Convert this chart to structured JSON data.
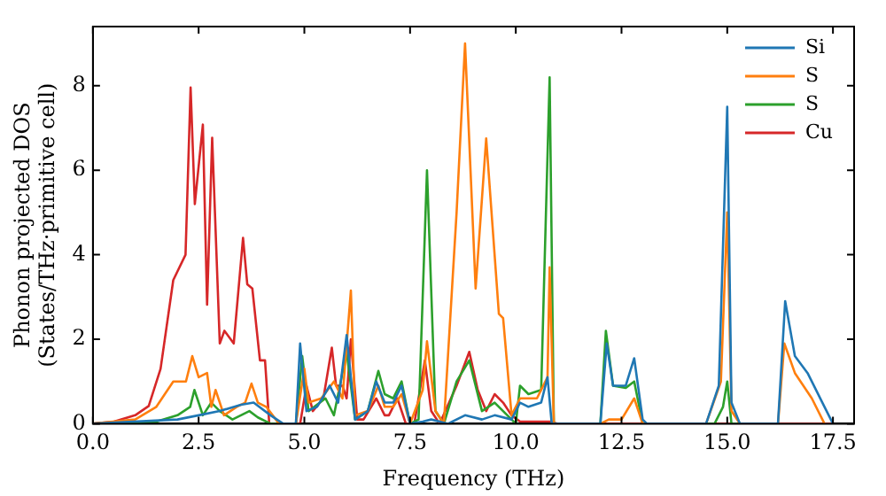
{
  "chart_data": {
    "type": "line",
    "xlabel": "Frequency (THz)",
    "ylabel": "Phonon projected DOS\n(States/THz·primitive cell)",
    "xlim": [
      0,
      18
    ],
    "ylim": [
      0,
      9.4
    ],
    "xticks": [
      {
        "value": 0,
        "label": "0.0"
      },
      2.5,
      {
        "value": 5,
        "label": "5.0"
      },
      7.5,
      {
        "value": 10,
        "label": "10.0"
      },
      12.5,
      {
        "value": 15,
        "label": "15.0"
      },
      17.5
    ],
    "yticks": [
      0,
      2,
      4,
      6,
      8
    ],
    "grid": false,
    "legend": "top right",
    "marker": "none",
    "line_style": "solid",
    "series": [
      {
        "name": "Si",
        "color": "#1f77b4",
        "x": [
          0,
          2,
          2.5,
          3,
          3.5,
          3.8,
          4.2,
          4.5,
          4.8,
          4.9,
          5.05,
          5.3,
          5.6,
          5.8,
          6.0,
          6.2,
          6.5,
          6.7,
          6.9,
          7.1,
          7.3,
          7.5,
          7.8,
          8.0,
          8.4,
          8.8,
          9.2,
          9.5,
          9.9,
          10.1,
          10.3,
          10.6,
          10.75,
          10.85,
          12.0,
          12.15,
          12.3,
          12.6,
          12.8,
          13.0,
          13.1,
          14.5,
          14.8,
          15.0,
          15.1,
          15.3,
          16.2,
          16.37,
          16.6,
          16.9,
          17.25,
          17.5
        ],
        "values": [
          0,
          0.1,
          0.2,
          0.3,
          0.45,
          0.5,
          0.2,
          0,
          0,
          1.9,
          0.3,
          0.4,
          0.9,
          0.5,
          2.1,
          0.1,
          0.3,
          1.0,
          0.5,
          0.5,
          0.9,
          0,
          0.05,
          0.1,
          0,
          0.2,
          0.1,
          0.2,
          0.1,
          0.5,
          0.4,
          0.5,
          1.1,
          0,
          0,
          1.9,
          0.9,
          0.9,
          1.55,
          0.1,
          0,
          0,
          0.9,
          7.5,
          0.5,
          0,
          0,
          2.9,
          1.6,
          1.2,
          0.5,
          0
        ]
      },
      {
        "name": "S",
        "color": "#ff7f0e",
        "x": [
          0,
          1,
          1.5,
          1.9,
          2.2,
          2.35,
          2.5,
          2.7,
          2.8,
          2.9,
          3.1,
          3.4,
          3.6,
          3.75,
          3.9,
          4.1,
          4.4,
          4.8,
          5.0,
          5.1,
          5.4,
          5.7,
          5.9,
          6.1,
          6.2,
          6.5,
          6.75,
          6.9,
          7.1,
          7.3,
          7.5,
          7.8,
          7.9,
          8.1,
          8.3,
          8.6,
          8.8,
          9.05,
          9.3,
          9.6,
          9.7,
          9.9,
          10.1,
          10.5,
          10.75,
          10.8,
          10.9,
          12.0,
          12.2,
          12.5,
          12.8,
          13.0,
          14.5,
          14.85,
          15.0,
          15.1,
          15.3,
          16.2,
          16.35,
          16.6,
          17.0,
          17.3
        ],
        "values": [
          0,
          0.1,
          0.4,
          1.0,
          1.0,
          1.6,
          1.1,
          1.2,
          0.4,
          0.8,
          0.2,
          0.4,
          0.5,
          0.95,
          0.5,
          0.4,
          0,
          0,
          1.3,
          0.5,
          0.6,
          1.0,
          0.6,
          3.15,
          0.2,
          0.3,
          0.9,
          0.4,
          0.4,
          0.7,
          0,
          0.8,
          1.95,
          0.3,
          0,
          5.0,
          9.0,
          3.2,
          6.75,
          2.6,
          2.5,
          0.2,
          0.6,
          0.6,
          1.1,
          3.7,
          0,
          0,
          0.1,
          0.1,
          0.6,
          0,
          0,
          1.0,
          5.0,
          0.3,
          0,
          0,
          1.9,
          1.2,
          0.6,
          0
        ]
      },
      {
        "name": "S",
        "color": "#2ca02c",
        "x": [
          0,
          1.5,
          2,
          2.3,
          2.4,
          2.6,
          2.8,
          3.0,
          3.3,
          3.7,
          3.9,
          4.2,
          4.8,
          4.95,
          5.1,
          5.5,
          5.7,
          6.0,
          6.2,
          6.5,
          6.75,
          6.9,
          7.1,
          7.3,
          7.5,
          7.7,
          7.9,
          8.1,
          8.3,
          8.6,
          8.9,
          9.2,
          9.5,
          9.8,
          10.0,
          10.1,
          10.3,
          10.6,
          10.8,
          10.9,
          12.0,
          12.13,
          12.3,
          12.6,
          12.8,
          13.0,
          14.7,
          14.9,
          15.0,
          15.1,
          15.3
        ],
        "values": [
          0,
          0.05,
          0.2,
          0.4,
          0.8,
          0.2,
          0.5,
          0.3,
          0.1,
          0.3,
          0.15,
          0,
          0,
          1.6,
          0.3,
          0.6,
          0.2,
          1.7,
          0.1,
          0.3,
          1.25,
          0.7,
          0.6,
          1.0,
          0,
          0.1,
          6.0,
          0.3,
          0,
          1.0,
          1.5,
          0.3,
          0.5,
          0.2,
          0,
          0.9,
          0.7,
          0.8,
          8.2,
          0,
          0,
          2.2,
          0.9,
          0.85,
          1.0,
          0,
          0,
          0.4,
          1.0,
          0,
          0
        ]
      },
      {
        "name": "Cu",
        "color": "#d62728",
        "x": [
          0,
          0.5,
          1,
          1.32,
          1.6,
          1.9,
          2.19,
          2.31,
          2.41,
          2.6,
          2.7,
          2.82,
          3.0,
          3.11,
          3.33,
          3.55,
          3.65,
          3.77,
          3.95,
          4.07,
          4.17,
          4.9,
          5.05,
          5.2,
          5.45,
          5.65,
          5.75,
          5.9,
          6.0,
          6.1,
          6.25,
          6.4,
          6.7,
          6.9,
          7.0,
          7.2,
          7.4,
          7.6,
          7.85,
          8.0,
          8.2,
          8.6,
          8.9,
          9.1,
          9.3,
          9.5,
          9.7,
          9.9,
          10.1,
          10.8,
          11.0,
          17.5
        ],
        "values": [
          0,
          0.05,
          0.2,
          0.42,
          1.3,
          3.4,
          4.0,
          7.96,
          5.2,
          7.08,
          2.82,
          6.77,
          1.9,
          2.2,
          1.9,
          4.4,
          3.3,
          3.2,
          1.5,
          1.5,
          0,
          0,
          0.9,
          0.3,
          0.6,
          1.8,
          0.9,
          0.9,
          0.6,
          2.0,
          0.1,
          0.1,
          0.6,
          0.2,
          0.2,
          0.6,
          0,
          0,
          1.5,
          0.3,
          0,
          0.9,
          1.7,
          0.8,
          0.3,
          0.7,
          0.5,
          0.2,
          0.05,
          0.05,
          0,
          0
        ]
      }
    ]
  }
}
